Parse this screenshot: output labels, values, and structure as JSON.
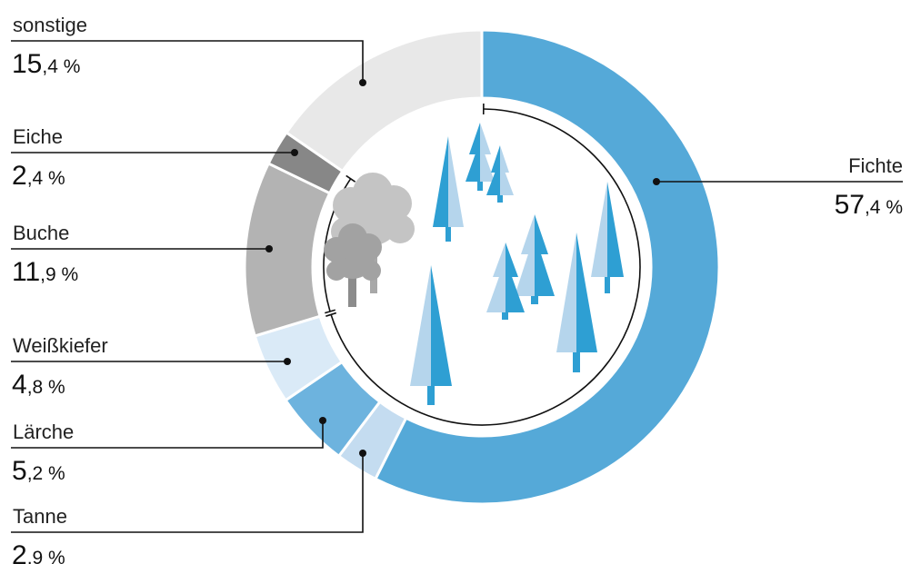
{
  "chart_data": {
    "type": "donut",
    "title": "",
    "series": [
      {
        "label": "Fichte",
        "value": 57.4,
        "integer": "57",
        "decimals": ",4 %",
        "color": "#55a9d8"
      },
      {
        "label": "Tanne",
        "value": 2.9,
        "integer": "2",
        "decimals": ",9 %",
        "color": "#c4dcf0"
      },
      {
        "label": "Lärche",
        "value": 5.2,
        "integer": "5",
        "decimals": ",2 %",
        "color": "#6db3de"
      },
      {
        "label": "Weißkiefer",
        "value": 4.8,
        "integer": "4",
        "decimals": ",8 %",
        "color": "#daeaf7"
      },
      {
        "label": "Buche",
        "value": 11.9,
        "integer": "11",
        "decimals": ",9 %",
        "color": "#b3b3b3"
      },
      {
        "label": "Eiche",
        "value": 2.4,
        "integer": "2",
        "decimals": ",4 %",
        "color": "#878787"
      },
      {
        "label": "sonstige",
        "value": 15.4,
        "integer": "15",
        "decimals": ",4 %",
        "color": "#e8e8e8"
      }
    ],
    "start_angle": "top",
    "direction": "clockwise",
    "illustration": [
      "conifer-trees",
      "deciduous-trees"
    ]
  }
}
